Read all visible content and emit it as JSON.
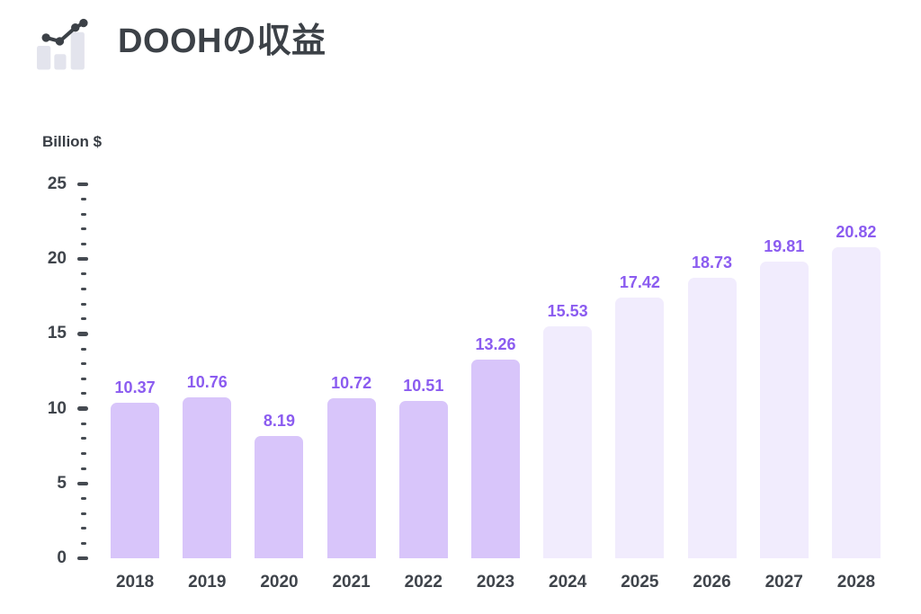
{
  "header": {
    "title": "DOOHの収益",
    "icon": "bar-chart-trend-icon"
  },
  "chart_data": {
    "type": "bar",
    "title": "DOOHの収益",
    "ylabel": "Billion $",
    "xlabel": "",
    "categories": [
      "2018",
      "2019",
      "2020",
      "2021",
      "2022",
      "2023",
      "2024",
      "2025",
      "2026",
      "2027",
      "2028"
    ],
    "values": [
      10.37,
      10.76,
      8.19,
      10.72,
      10.51,
      13.26,
      15.53,
      17.42,
      18.73,
      19.81,
      20.82
    ],
    "value_labels": [
      "10.37",
      "10.76",
      "8.19",
      "10.72",
      "10.51",
      "13.26",
      "15.53",
      "17.42",
      "18.73",
      "19.81",
      "20.82"
    ],
    "ylim": [
      0,
      25
    ],
    "y_major_step": 5,
    "y_minor_step": 1,
    "y_tick_labels": [
      "0",
      "5",
      "10",
      "15",
      "20",
      "25"
    ],
    "grid": false,
    "legend": false,
    "solid_until_index": 5,
    "colors": {
      "bar_solid": "#d8c5fa",
      "bar_forecast": "#f1ecfd",
      "value_label": "#8b5cf0",
      "axis_text": "#3f444b",
      "tick": "#454a51",
      "title_text": "#3c4147",
      "icon_gray": "#e3e4ed",
      "icon_dark": "#3c4147"
    }
  }
}
